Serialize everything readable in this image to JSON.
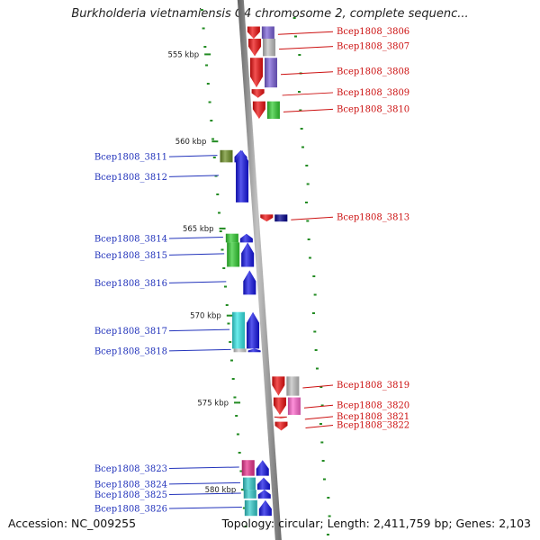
{
  "title": "Burkholderia vietnamiensis G4 chromosome 2, complete sequenc...",
  "footer": {
    "accession": "Accession: NC_009255",
    "topology": "Topology: circular; Length: 2,411,759 bp; Genes: 2,103"
  },
  "colors": {
    "backbone": "#8c8c8c",
    "tick": "#228b22",
    "forward_label": "#2233bb",
    "reverse_label": "#cc1111"
  },
  "scale_labels": [
    {
      "kbp": 555,
      "text": "555 kbp"
    },
    {
      "kbp": 560,
      "text": "560 kbp"
    },
    {
      "kbp": 565,
      "text": "565 kbp"
    },
    {
      "kbp": 570,
      "text": "570 kbp"
    },
    {
      "kbp": 575,
      "text": "575 kbp"
    },
    {
      "kbp": 580,
      "text": "580 kbp"
    }
  ],
  "genes_forward": [
    {
      "label": "Bcep1808_3811",
      "start_kbp": 560.5,
      "end_kbp": 561.2,
      "cog_color": "#6b8e23"
    },
    {
      "label": "Bcep1808_3812",
      "start_kbp": 560.5,
      "end_kbp": 563.5,
      "cog_color": ""
    },
    {
      "label": "Bcep1808_3814",
      "start_kbp": 565.3,
      "end_kbp": 565.8,
      "cog_color": "#32cd32"
    },
    {
      "label": "Bcep1808_3815",
      "start_kbp": 565.8,
      "end_kbp": 567.2,
      "cog_color": "#32cd32"
    },
    {
      "label": "Bcep1808_3816",
      "start_kbp": 567.4,
      "end_kbp": 568.8,
      "cog_color": ""
    },
    {
      "label": "Bcep1808_3817",
      "start_kbp": 569.8,
      "end_kbp": 571.9,
      "cog_color": "#33e6e6"
    },
    {
      "label": "Bcep1808_3818",
      "start_kbp": 571.9,
      "end_kbp": 572.1,
      "cog_color": "#cccccc"
    },
    {
      "label": "Bcep1808_3823",
      "start_kbp": 578.3,
      "end_kbp": 579.2,
      "cog_color": "#e8308c"
    },
    {
      "label": "Bcep1808_3824",
      "start_kbp": 579.3,
      "end_kbp": 580.0,
      "cog_color": "#33cccc"
    },
    {
      "label": "Bcep1808_3825",
      "start_kbp": 580.0,
      "end_kbp": 580.5,
      "cog_color": "#33cccc"
    },
    {
      "label": "Bcep1808_3826",
      "start_kbp": 580.6,
      "end_kbp": 581.5,
      "cog_color": "#33cccc"
    }
  ],
  "genes_reverse": [
    {
      "label": "Bcep1808_3806",
      "start_kbp": 553.4,
      "end_kbp": 554.1,
      "cog_color": "#7a60d8"
    },
    {
      "label": "Bcep1808_3807",
      "start_kbp": 554.1,
      "end_kbp": 555.1,
      "cog_color": "#c0c0c0"
    },
    {
      "label": "Bcep1808_3808",
      "start_kbp": 555.2,
      "end_kbp": 556.9,
      "cog_color": "#7a60d8"
    },
    {
      "label": "Bcep1808_3809",
      "start_kbp": 557.0,
      "end_kbp": 557.5,
      "cog_color": ""
    },
    {
      "label": "Bcep1808_3810",
      "start_kbp": 557.7,
      "end_kbp": 558.7,
      "cog_color": "#32cd32"
    },
    {
      "label": "Bcep1808_3813",
      "start_kbp": 564.2,
      "end_kbp": 564.6,
      "cog_color": "#00008b"
    },
    {
      "label": "Bcep1808_3819",
      "start_kbp": 573.5,
      "end_kbp": 574.6,
      "cog_color": "#c0c0c0"
    },
    {
      "label": "Bcep1808_3820",
      "start_kbp": 574.7,
      "end_kbp": 575.7,
      "cog_color": "#ff66cc"
    },
    {
      "label": "Bcep1808_3821",
      "start_kbp": 575.8,
      "end_kbp": 575.9,
      "cog_color": ""
    },
    {
      "label": "Bcep1808_3822",
      "start_kbp": 576.1,
      "end_kbp": 576.6,
      "cog_color": ""
    }
  ]
}
